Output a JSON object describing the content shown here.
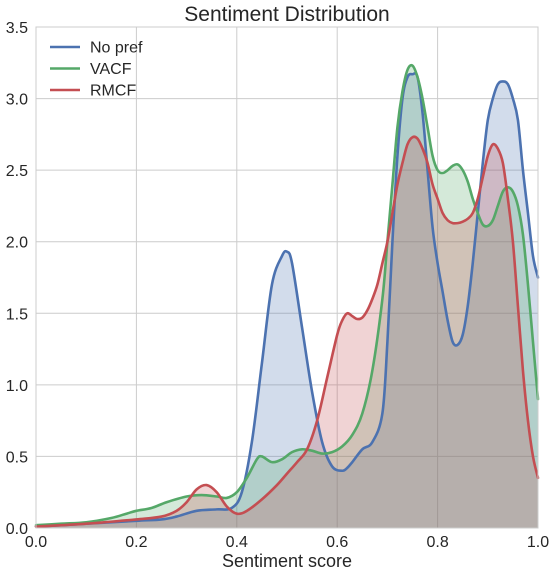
{
  "chart_data": {
    "type": "area",
    "title": "Sentiment Distribution",
    "xlabel": "Sentiment score",
    "ylabel": "",
    "xlim": [
      0.0,
      1.0
    ],
    "ylim": [
      0.0,
      3.5
    ],
    "xticks": [
      "0.0",
      "0.2",
      "0.4",
      "0.6",
      "0.8",
      "1.0"
    ],
    "yticks": [
      "0.0",
      "0.5",
      "1.0",
      "1.5",
      "2.0",
      "2.5",
      "3.0",
      "3.5"
    ],
    "grid": true,
    "legend_position": "top-left",
    "series": [
      {
        "name": "No pref",
        "color": "#4c72b0",
        "x": [
          0.0,
          0.1,
          0.2,
          0.25,
          0.28,
          0.32,
          0.36,
          0.39,
          0.41,
          0.43,
          0.45,
          0.47,
          0.49,
          0.5,
          0.51,
          0.53,
          0.55,
          0.57,
          0.59,
          0.61,
          0.62,
          0.63,
          0.65,
          0.67,
          0.69,
          0.7,
          0.71,
          0.72,
          0.73,
          0.74,
          0.75,
          0.76,
          0.77,
          0.78,
          0.79,
          0.8,
          0.81,
          0.82,
          0.83,
          0.84,
          0.85,
          0.86,
          0.87,
          0.88,
          0.89,
          0.9,
          0.91,
          0.92,
          0.93,
          0.94,
          0.95,
          0.96,
          0.97,
          0.98,
          0.99,
          1.0
        ],
        "y": [
          0.01,
          0.03,
          0.05,
          0.06,
          0.08,
          0.12,
          0.13,
          0.14,
          0.25,
          0.6,
          1.15,
          1.7,
          1.9,
          1.93,
          1.85,
          1.4,
          0.95,
          0.6,
          0.43,
          0.4,
          0.42,
          0.46,
          0.55,
          0.6,
          0.8,
          1.3,
          2.0,
          2.6,
          3.0,
          3.15,
          3.17,
          3.15,
          2.9,
          2.5,
          2.1,
          1.85,
          1.65,
          1.45,
          1.3,
          1.28,
          1.35,
          1.55,
          1.85,
          2.2,
          2.55,
          2.85,
          3.0,
          3.1,
          3.12,
          3.1,
          3.0,
          2.85,
          2.5,
          2.2,
          1.9,
          1.75
        ]
      },
      {
        "name": "VACF",
        "color": "#55a868",
        "x": [
          0.0,
          0.05,
          0.1,
          0.15,
          0.18,
          0.2,
          0.23,
          0.26,
          0.3,
          0.33,
          0.36,
          0.38,
          0.4,
          0.42,
          0.44,
          0.45,
          0.47,
          0.49,
          0.51,
          0.53,
          0.55,
          0.57,
          0.59,
          0.61,
          0.63,
          0.65,
          0.67,
          0.69,
          0.7,
          0.71,
          0.72,
          0.73,
          0.74,
          0.75,
          0.76,
          0.77,
          0.78,
          0.79,
          0.8,
          0.81,
          0.82,
          0.83,
          0.84,
          0.85,
          0.86,
          0.87,
          0.88,
          0.89,
          0.9,
          0.91,
          0.92,
          0.93,
          0.94,
          0.95,
          0.96,
          0.97,
          0.98,
          0.99,
          1.0
        ],
        "y": [
          0.02,
          0.03,
          0.04,
          0.07,
          0.1,
          0.12,
          0.14,
          0.18,
          0.22,
          0.23,
          0.22,
          0.21,
          0.25,
          0.35,
          0.48,
          0.5,
          0.46,
          0.48,
          0.53,
          0.55,
          0.54,
          0.52,
          0.53,
          0.57,
          0.65,
          0.8,
          1.1,
          1.6,
          2.0,
          2.4,
          2.8,
          3.05,
          3.2,
          3.23,
          3.15,
          3.0,
          2.8,
          2.6,
          2.5,
          2.48,
          2.5,
          2.53,
          2.54,
          2.5,
          2.42,
          2.3,
          2.2,
          2.12,
          2.11,
          2.15,
          2.25,
          2.35,
          2.38,
          2.35,
          2.25,
          2.05,
          1.7,
          1.3,
          0.9
        ]
      },
      {
        "name": "RMCF",
        "color": "#c44e52",
        "x": [
          0.0,
          0.1,
          0.2,
          0.25,
          0.28,
          0.3,
          0.32,
          0.34,
          0.36,
          0.38,
          0.4,
          0.42,
          0.45,
          0.48,
          0.5,
          0.52,
          0.54,
          0.56,
          0.58,
          0.6,
          0.61,
          0.62,
          0.63,
          0.64,
          0.65,
          0.66,
          0.67,
          0.68,
          0.69,
          0.7,
          0.71,
          0.72,
          0.73,
          0.74,
          0.75,
          0.76,
          0.77,
          0.78,
          0.79,
          0.8,
          0.81,
          0.82,
          0.83,
          0.84,
          0.85,
          0.86,
          0.87,
          0.88,
          0.89,
          0.9,
          0.91,
          0.92,
          0.93,
          0.94,
          0.95,
          0.96,
          0.97,
          0.98,
          0.99,
          1.0
        ],
        "y": [
          0.01,
          0.03,
          0.06,
          0.08,
          0.12,
          0.18,
          0.27,
          0.3,
          0.25,
          0.15,
          0.1,
          0.12,
          0.2,
          0.3,
          0.38,
          0.46,
          0.55,
          0.75,
          1.05,
          1.35,
          1.45,
          1.5,
          1.48,
          1.46,
          1.47,
          1.52,
          1.6,
          1.7,
          1.85,
          2.0,
          2.2,
          2.4,
          2.55,
          2.68,
          2.73,
          2.72,
          2.65,
          2.55,
          2.4,
          2.3,
          2.2,
          2.15,
          2.13,
          2.13,
          2.14,
          2.16,
          2.2,
          2.3,
          2.45,
          2.6,
          2.68,
          2.65,
          2.55,
          2.3,
          2.0,
          1.55,
          1.1,
          0.75,
          0.5,
          0.35
        ]
      }
    ]
  }
}
